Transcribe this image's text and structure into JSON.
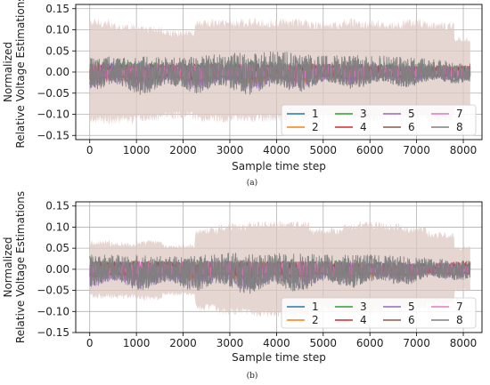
{
  "chart_data": [
    {
      "type": "line",
      "panel_label": "(a)",
      "xlabel": "Sample time step",
      "ylabel_line1": "Normalized",
      "ylabel_line2": "Relative Voltage Estimations",
      "xlim": [
        -300,
        8400
      ],
      "ylim": [
        -0.16,
        0.16
      ],
      "xticks": [
        0,
        1000,
        2000,
        3000,
        4000,
        5000,
        6000,
        7000,
        8000
      ],
      "yticks": [
        -0.15,
        -0.1,
        -0.05,
        0.0,
        0.05,
        0.1,
        0.15
      ],
      "ytick_labels": [
        "−0.15",
        "−0.10",
        "−0.05",
        "0.00",
        "0.05",
        "0.10",
        "0.15"
      ],
      "grid": true,
      "legend_position": "lower-right",
      "confidence_band": {
        "color": "#dcc8c2",
        "x": [
          0,
          420,
          430,
          1000,
          1010,
          1550,
          1560,
          2250,
          2260,
          2750,
          2760,
          3400,
          3410,
          4700,
          4710,
          5400,
          5410,
          5700,
          5710,
          6250,
          6260,
          6700,
          6710,
          7200,
          7210,
          7800,
          7810,
          7950,
          7960,
          8150
        ],
        "upper": [
          0.128,
          0.128,
          0.118,
          0.118,
          0.11,
          0.11,
          0.102,
          0.102,
          0.128,
          0.128,
          0.128,
          0.128,
          0.128,
          0.128,
          0.12,
          0.12,
          0.128,
          0.128,
          0.124,
          0.124,
          0.12,
          0.12,
          0.128,
          0.128,
          0.12,
          0.12,
          0.085,
          0.085,
          0.085,
          0.085
        ],
        "lower": [
          -0.125,
          -0.125,
          -0.125,
          -0.125,
          -0.118,
          -0.118,
          -0.112,
          -0.112,
          -0.12,
          -0.12,
          -0.12,
          -0.12,
          -0.12,
          -0.12,
          -0.115,
          -0.115,
          -0.118,
          -0.118,
          -0.118,
          -0.118,
          -0.115,
          -0.115,
          -0.118,
          -0.118,
          -0.12,
          -0.12,
          -0.09,
          -0.09,
          -0.09,
          -0.09
        ]
      },
      "series": [
        {
          "name": "1",
          "color": "#1f77b4",
          "envelope": {
            "x": [
              0,
              1000,
              2000,
              3000,
              4000,
              5000,
              6000,
              7000,
              8150
            ],
            "upper": [
              0.025,
              0.025,
              0.02,
              0.025,
              0.025,
              0.02,
              0.02,
              0.02,
              0.015
            ],
            "lower": [
              -0.02,
              -0.03,
              -0.03,
              -0.03,
              -0.03,
              -0.02,
              -0.02,
              -0.02,
              -0.015
            ]
          }
        },
        {
          "name": "2",
          "color": "#ff7f0e",
          "envelope": {
            "x": [
              0,
              1000,
              2000,
              3000,
              4000,
              5000,
              6000,
              7000,
              8150
            ],
            "upper": [
              0.01,
              0.01,
              0.01,
              0.01,
              0.01,
              0.01,
              0.01,
              0.01,
              0.01
            ],
            "lower": [
              -0.03,
              -0.035,
              -0.03,
              -0.03,
              -0.035,
              -0.025,
              -0.02,
              -0.02,
              -0.015
            ]
          }
        },
        {
          "name": "3",
          "color": "#2ca02c",
          "envelope": {
            "x": [
              0,
              1000,
              2000,
              3000,
              4000,
              5000,
              6000,
              7000,
              8150
            ],
            "upper": [
              0.025,
              0.025,
              0.025,
              0.025,
              0.025,
              0.02,
              0.02,
              0.02,
              0.015
            ],
            "lower": [
              -0.02,
              -0.02,
              -0.02,
              -0.02,
              -0.02,
              -0.015,
              -0.015,
              -0.015,
              -0.01
            ]
          }
        },
        {
          "name": "4",
          "color": "#d62728",
          "envelope": {
            "x": [
              0,
              1000,
              2000,
              3000,
              4000,
              5000,
              6000,
              7000,
              8150
            ],
            "upper": [
              0.02,
              0.02,
              0.02,
              0.02,
              0.02,
              0.02,
              0.015,
              0.015,
              0.015
            ],
            "lower": [
              -0.02,
              -0.025,
              -0.02,
              -0.025,
              -0.025,
              -0.02,
              -0.02,
              -0.015,
              -0.015
            ]
          }
        },
        {
          "name": "5",
          "color": "#9467bd",
          "envelope": {
            "x": [
              0,
              1000,
              2000,
              3000,
              4000,
              5000,
              6000,
              7000,
              8150
            ],
            "upper": [
              0.02,
              0.02,
              0.02,
              0.02,
              0.02,
              0.02,
              0.02,
              0.015,
              0.015
            ],
            "lower": [
              -0.04,
              -0.045,
              -0.04,
              -0.045,
              -0.045,
              -0.035,
              -0.03,
              -0.03,
              -0.02
            ]
          }
        },
        {
          "name": "6",
          "color": "#8c564b",
          "envelope": {
            "x": [
              0,
              1000,
              2000,
              3000,
              4000,
              5000,
              6000,
              7000,
              8150
            ],
            "upper": [
              0.02,
              0.02,
              0.02,
              0.02,
              0.02,
              0.02,
              0.02,
              0.015,
              0.015
            ],
            "lower": [
              -0.02,
              -0.02,
              -0.02,
              -0.02,
              -0.02,
              -0.02,
              -0.015,
              -0.015,
              -0.015
            ]
          }
        },
        {
          "name": "7",
          "color": "#e377c2",
          "envelope": {
            "x": [
              0,
              1000,
              2000,
              3000,
              4000,
              5000,
              6000,
              7000,
              8150
            ],
            "upper": [
              0.02,
              0.02,
              0.02,
              0.02,
              0.02,
              0.02,
              0.015,
              0.015,
              0.015
            ],
            "lower": [
              -0.02,
              -0.02,
              -0.02,
              -0.02,
              -0.02,
              -0.02,
              -0.015,
              -0.015,
              -0.015
            ]
          }
        },
        {
          "name": "8",
          "color": "#7f7f7f",
          "envelope": {
            "x": [
              0,
              1000,
              2000,
              3000,
              4000,
              5000,
              6000,
              7000,
              8150
            ],
            "upper": [
              0.035,
              0.04,
              0.035,
              0.045,
              0.05,
              0.04,
              0.04,
              0.035,
              0.02
            ],
            "lower": [
              -0.045,
              -0.055,
              -0.05,
              -0.055,
              -0.055,
              -0.04,
              -0.04,
              -0.035,
              -0.025
            ]
          }
        }
      ]
    },
    {
      "type": "line",
      "panel_label": "(b)",
      "xlabel": "Sample time step",
      "ylabel_line1": "Normalized",
      "ylabel_line2": "Relative Voltage Estimations",
      "xlim": [
        -300,
        8400
      ],
      "ylim": [
        -0.15,
        0.16
      ],
      "xticks": [
        0,
        1000,
        2000,
        3000,
        4000,
        5000,
        6000,
        7000,
        8000
      ],
      "yticks": [
        -0.15,
        -0.1,
        -0.05,
        0.0,
        0.05,
        0.1,
        0.15
      ],
      "ytick_labels": [
        "−0.15",
        "−0.10",
        "−0.05",
        "0.00",
        "0.05",
        "0.10",
        "0.15"
      ],
      "grid": true,
      "legend_position": "lower-right",
      "confidence_band": {
        "color": "#dcc8c2",
        "x": [
          0,
          420,
          430,
          1000,
          1010,
          1550,
          1560,
          2250,
          2260,
          2750,
          2760,
          3400,
          3410,
          4700,
          4710,
          5400,
          5410,
          5700,
          5710,
          6250,
          6260,
          6700,
          6710,
          7200,
          7210,
          7800,
          7810,
          7950,
          7960,
          8150
        ],
        "upper": [
          0.07,
          0.07,
          0.065,
          0.065,
          0.07,
          0.07,
          0.06,
          0.06,
          0.1,
          0.1,
          0.11,
          0.11,
          0.115,
          0.115,
          0.1,
          0.1,
          0.11,
          0.11,
          0.115,
          0.115,
          0.11,
          0.11,
          0.105,
          0.105,
          0.09,
          0.09,
          0.055,
          0.055,
          0.055,
          0.055
        ],
        "lower": [
          -0.07,
          -0.07,
          -0.07,
          -0.07,
          -0.075,
          -0.075,
          -0.065,
          -0.065,
          -0.1,
          -0.1,
          -0.11,
          -0.11,
          -0.115,
          -0.115,
          -0.1,
          -0.1,
          -0.11,
          -0.11,
          -0.11,
          -0.11,
          -0.1,
          -0.1,
          -0.1,
          -0.1,
          -0.09,
          -0.09,
          -0.055,
          -0.055,
          -0.055,
          -0.055
        ]
      },
      "series": [
        {
          "name": "1",
          "color": "#1f77b4",
          "envelope": {
            "x": [
              0,
              1000,
              2000,
              3000,
              4000,
              5000,
              6000,
              7000,
              8150
            ],
            "upper": [
              0.025,
              0.02,
              0.02,
              0.02,
              0.02,
              0.02,
              0.02,
              0.015,
              0.015
            ],
            "lower": [
              -0.02,
              -0.025,
              -0.025,
              -0.025,
              -0.025,
              -0.02,
              -0.02,
              -0.015,
              -0.015
            ]
          }
        },
        {
          "name": "2",
          "color": "#ff7f0e",
          "envelope": {
            "x": [
              0,
              1000,
              2000,
              3000,
              4000,
              5000,
              6000,
              7000,
              8150
            ],
            "upper": [
              0.01,
              0.01,
              0.01,
              0.01,
              0.01,
              0.01,
              0.01,
              0.01,
              0.01
            ],
            "lower": [
              -0.025,
              -0.03,
              -0.025,
              -0.03,
              -0.03,
              -0.025,
              -0.03,
              -0.02,
              -0.015
            ]
          }
        },
        {
          "name": "3",
          "color": "#2ca02c",
          "envelope": {
            "x": [
              0,
              1000,
              2000,
              3000,
              4000,
              5000,
              6000,
              7000,
              8150
            ],
            "upper": [
              0.02,
              0.02,
              0.02,
              0.02,
              0.02,
              0.02,
              0.02,
              0.015,
              0.015
            ],
            "lower": [
              -0.015,
              -0.02,
              -0.02,
              -0.02,
              -0.02,
              -0.015,
              -0.015,
              -0.015,
              -0.01
            ]
          }
        },
        {
          "name": "4",
          "color": "#d62728",
          "envelope": {
            "x": [
              0,
              1000,
              2000,
              3000,
              4000,
              5000,
              6000,
              7000,
              8150
            ],
            "upper": [
              0.02,
              0.02,
              0.02,
              0.02,
              0.02,
              0.02,
              0.015,
              0.015,
              0.02
            ],
            "lower": [
              -0.02,
              -0.02,
              -0.02,
              -0.02,
              -0.02,
              -0.02,
              -0.015,
              -0.015,
              -0.015
            ]
          }
        },
        {
          "name": "5",
          "color": "#9467bd",
          "envelope": {
            "x": [
              0,
              1000,
              2000,
              3000,
              4000,
              5000,
              6000,
              7000,
              8150
            ],
            "upper": [
              0.02,
              0.02,
              0.02,
              0.02,
              0.02,
              0.02,
              0.015,
              0.015,
              0.015
            ],
            "lower": [
              -0.045,
              -0.05,
              -0.045,
              -0.05,
              -0.05,
              -0.04,
              -0.035,
              -0.03,
              -0.02
            ]
          }
        },
        {
          "name": "6",
          "color": "#8c564b",
          "envelope": {
            "x": [
              0,
              1000,
              2000,
              3000,
              4000,
              5000,
              6000,
              7000,
              8150
            ],
            "upper": [
              0.02,
              0.02,
              0.02,
              0.02,
              0.02,
              0.02,
              0.015,
              0.015,
              0.02
            ],
            "lower": [
              -0.02,
              -0.02,
              -0.02,
              -0.02,
              -0.02,
              -0.02,
              -0.015,
              -0.015,
              -0.015
            ]
          }
        },
        {
          "name": "7",
          "color": "#e377c2",
          "envelope": {
            "x": [
              0,
              1000,
              2000,
              3000,
              4000,
              5000,
              6000,
              7000,
              8150
            ],
            "upper": [
              0.02,
              0.02,
              0.02,
              0.02,
              0.02,
              0.02,
              0.015,
              0.015,
              0.015
            ],
            "lower": [
              -0.02,
              -0.02,
              -0.02,
              -0.02,
              -0.02,
              -0.02,
              -0.015,
              -0.015,
              -0.015
            ]
          }
        },
        {
          "name": "8",
          "color": "#7f7f7f",
          "envelope": {
            "x": [
              0,
              1000,
              2000,
              3000,
              4000,
              5000,
              6000,
              7000,
              8150
            ],
            "upper": [
              0.035,
              0.035,
              0.03,
              0.04,
              0.04,
              0.035,
              0.035,
              0.03,
              0.02
            ],
            "lower": [
              -0.045,
              -0.05,
              -0.05,
              -0.06,
              -0.06,
              -0.045,
              -0.045,
              -0.035,
              -0.025
            ]
          }
        }
      ]
    }
  ]
}
